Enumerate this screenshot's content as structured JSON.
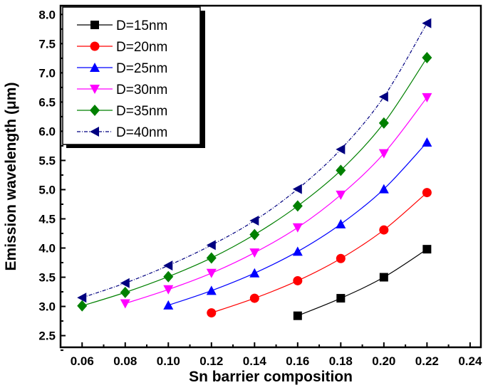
{
  "chart_data": {
    "type": "line",
    "title": "",
    "xlabel": "Sn barrier composition",
    "ylabel": "Emission wavelength (μm)",
    "xlim": [
      0.05,
      0.245
    ],
    "ylim": [
      2.3,
      8.15
    ],
    "xticks": [
      "0.06",
      "0.08",
      "0.10",
      "0.12",
      "0.14",
      "0.16",
      "0.18",
      "0.20",
      "0.22",
      "0.24"
    ],
    "yticks": [
      "2.5",
      "3.0",
      "3.5",
      "4.0",
      "4.5",
      "5.0",
      "5.5",
      "6.0",
      "6.5",
      "7.0",
      "7.5",
      "8.0"
    ],
    "grid": false,
    "legend_position": "top-left",
    "series": [
      {
        "name": "D=15nm",
        "color": "#000000",
        "marker": "square",
        "dash": "solid",
        "x": [
          0.16,
          0.18,
          0.2,
          0.22
        ],
        "y": [
          2.84,
          3.14,
          3.5,
          3.98
        ]
      },
      {
        "name": "D=20nm",
        "color": "#ff0000",
        "marker": "circle",
        "dash": "solid",
        "x": [
          0.12,
          0.14,
          0.16,
          0.18,
          0.2,
          0.22
        ],
        "y": [
          2.89,
          3.14,
          3.44,
          3.82,
          4.31,
          4.95
        ]
      },
      {
        "name": "D=25nm",
        "color": "#0000ff",
        "marker": "triangle-up",
        "dash": "solid",
        "x": [
          0.1,
          0.12,
          0.14,
          0.16,
          0.18,
          0.2,
          0.22
        ],
        "y": [
          3.02,
          3.27,
          3.57,
          3.94,
          4.41,
          5.01,
          5.81
        ]
      },
      {
        "name": "D=30nm",
        "color": "#ff00ff",
        "marker": "triangle-down",
        "dash": "solid",
        "x": [
          0.08,
          0.1,
          0.12,
          0.14,
          0.16,
          0.18,
          0.2,
          0.22
        ],
        "y": [
          3.05,
          3.29,
          3.57,
          3.92,
          4.35,
          4.91,
          5.62,
          6.58
        ]
      },
      {
        "name": "D=35nm",
        "color": "#008000",
        "marker": "diamond",
        "dash": "solid",
        "x": [
          0.06,
          0.08,
          0.1,
          0.12,
          0.14,
          0.16,
          0.18,
          0.2,
          0.22
        ],
        "y": [
          3.01,
          3.24,
          3.51,
          3.83,
          4.23,
          4.72,
          5.33,
          6.14,
          7.26
        ]
      },
      {
        "name": "D=40nm",
        "color": "#000080",
        "marker": "triangle-left",
        "dash": "dashdot",
        "x": [
          0.06,
          0.08,
          0.1,
          0.12,
          0.14,
          0.16,
          0.18,
          0.2,
          0.22
        ],
        "y": [
          3.15,
          3.4,
          3.7,
          4.05,
          4.47,
          5.01,
          5.69,
          6.59,
          7.85
        ]
      }
    ]
  }
}
